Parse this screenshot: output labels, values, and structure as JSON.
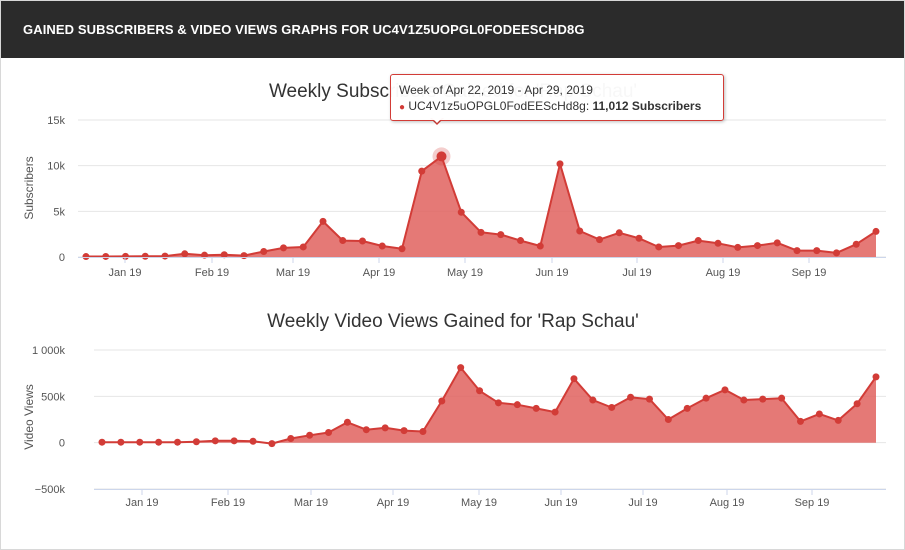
{
  "header": {
    "title": "GAINED SUBSCRIBERS & VIDEO VIEWS GRAPHS FOR UC4V1Z5UOPGL0FODEESCHD8G"
  },
  "tooltip": {
    "week": "Week of Apr 22, 2019 - Apr 29, 2019",
    "series": "UC4V1z5uOPGL0FodEEScHd8g:",
    "value": "11,012 Subscribers"
  },
  "colors": {
    "series": "#d23c37",
    "area": "#e0625e",
    "grid": "#e6e6e6",
    "header_bg": "#2b2b2b"
  },
  "chart_data": [
    {
      "type": "area",
      "title": "Weekly Subscribers Gained for 'Rap Schau'",
      "xlabel": "",
      "ylabel": "Subscribers",
      "yticks": [
        0,
        5000,
        10000,
        15000
      ],
      "ytick_labels": [
        "0",
        "5k",
        "10k",
        "15k"
      ],
      "ylim": [
        0,
        15000
      ],
      "xtick_labels": [
        "Jan 19",
        "Feb 19",
        "Mar 19",
        "Apr 19",
        "May 19",
        "Jun 19",
        "Jul 19",
        "Aug 19",
        "Sep 19"
      ],
      "grid": true,
      "highlight_index": 18,
      "series": [
        {
          "name": "UC4V1z5uOPGL0FodEEScHd8g",
          "values": [
            50,
            60,
            70,
            80,
            100,
            350,
            200,
            250,
            150,
            600,
            1000,
            1100,
            3900,
            1800,
            1750,
            1200,
            900,
            9400,
            11012,
            4900,
            2700,
            2450,
            1800,
            1200,
            10200,
            2850,
            1900,
            2650,
            2050,
            1100,
            1250,
            1800,
            1500,
            1050,
            1250,
            1550,
            700,
            700,
            450,
            1400,
            2800
          ]
        }
      ]
    },
    {
      "type": "area",
      "title": "Weekly Video Views Gained for 'Rap Schau'",
      "xlabel": "",
      "ylabel": "Video Views",
      "yticks": [
        -500000,
        0,
        500000,
        1000000
      ],
      "ytick_labels": [
        "−500k",
        "0",
        "500k",
        "1 000k"
      ],
      "ylim": [
        -500000,
        1000000
      ],
      "xtick_labels": [
        "Jan 19",
        "Feb 19",
        "Mar 19",
        "Apr 19",
        "May 19",
        "Jun 19",
        "Jul 19",
        "Aug 19",
        "Sep 19"
      ],
      "grid": true,
      "series": [
        {
          "name": "UC4V1z5uOPGL0FodEEScHd8g",
          "values": [
            5000,
            5000,
            5000,
            5000,
            5000,
            10000,
            20000,
            20000,
            15000,
            -10000,
            45000,
            80000,
            110000,
            220000,
            140000,
            160000,
            130000,
            120000,
            450000,
            810000,
            560000,
            430000,
            410000,
            370000,
            330000,
            690000,
            460000,
            380000,
            490000,
            470000,
            250000,
            370000,
            480000,
            570000,
            460000,
            470000,
            480000,
            230000,
            310000,
            240000,
            420000,
            710000
          ]
        }
      ]
    }
  ]
}
